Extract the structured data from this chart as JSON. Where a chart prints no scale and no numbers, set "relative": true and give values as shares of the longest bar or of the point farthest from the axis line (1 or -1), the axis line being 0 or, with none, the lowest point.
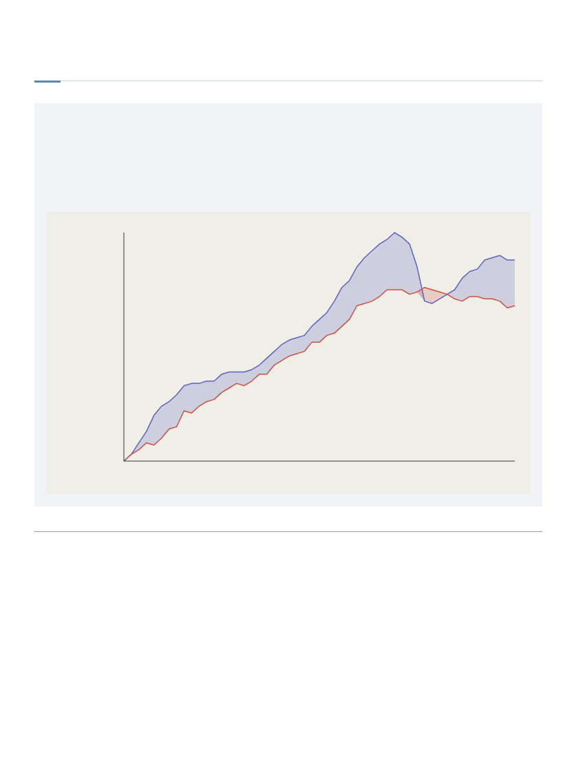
{
  "chart_data": {
    "type": "line",
    "relative": true,
    "marker": "none",
    "line_style": "solid",
    "categories": [
      null,
      null,
      null,
      null,
      null,
      null,
      null,
      null,
      null,
      null,
      null,
      null,
      null,
      null,
      null,
      null,
      null,
      null,
      null,
      null,
      null,
      null,
      null,
      null,
      null,
      null,
      null,
      null,
      null,
      null,
      null,
      null,
      null,
      null,
      null,
      null,
      null,
      null,
      null,
      null,
      null,
      null,
      null,
      null,
      null,
      null,
      null,
      null,
      null,
      null,
      null,
      null,
      null
    ],
    "series": [
      {
        "color": "#5b62c0",
        "values": [
          0.0,
          0.03,
          0.08,
          0.13,
          0.2,
          0.24,
          0.26,
          0.29,
          0.33,
          0.34,
          0.34,
          0.35,
          0.35,
          0.38,
          0.39,
          0.39,
          0.39,
          0.4,
          0.42,
          0.45,
          0.48,
          0.51,
          0.53,
          0.54,
          0.55,
          0.59,
          0.62,
          0.65,
          0.7,
          0.76,
          0.79,
          0.85,
          0.89,
          0.92,
          0.95,
          0.97,
          1.0,
          0.98,
          0.95,
          0.85,
          0.7,
          0.69,
          0.71,
          0.73,
          0.75,
          0.8,
          0.83,
          0.84,
          0.88,
          0.89,
          0.9,
          0.88,
          0.88
        ]
      },
      {
        "color": "#d0503f",
        "values": [
          0.0,
          0.03,
          0.05,
          0.08,
          0.07,
          0.1,
          0.14,
          0.15,
          0.22,
          0.21,
          0.24,
          0.26,
          0.27,
          0.3,
          0.32,
          0.34,
          0.33,
          0.35,
          0.38,
          0.38,
          0.42,
          0.44,
          0.46,
          0.47,
          0.48,
          0.52,
          0.52,
          0.55,
          0.56,
          0.59,
          0.62,
          0.68,
          0.69,
          0.7,
          0.72,
          0.75,
          0.75,
          0.75,
          0.73,
          0.74,
          0.76,
          0.75,
          0.74,
          0.73,
          0.71,
          0.7,
          0.72,
          0.72,
          0.71,
          0.71,
          0.7,
          0.67,
          0.68
        ]
      }
    ]
  }
}
